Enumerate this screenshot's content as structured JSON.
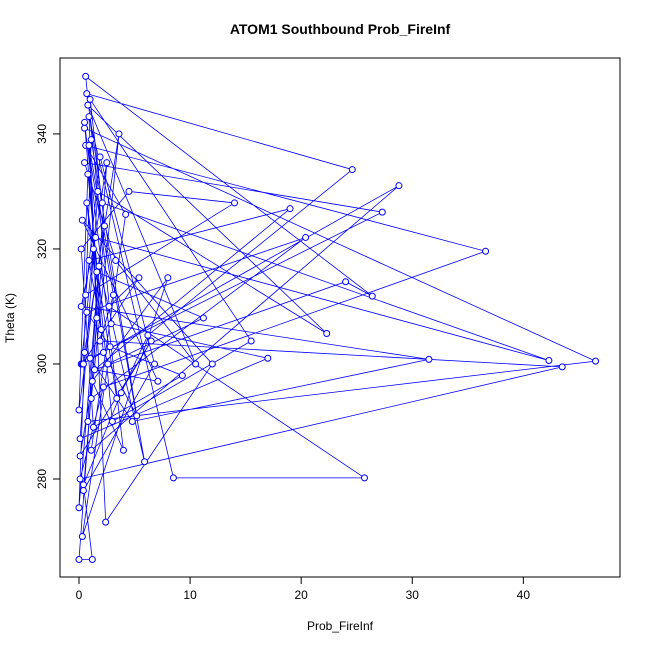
{
  "chart_data": {
    "type": "line",
    "title": "ATOM1 Southbound Prob_FireInf",
    "x_label": "Prob_FireInf",
    "y_label": "Theta (K)",
    "color": "#0000ff",
    "xlim": [
      -1.71,
      48.7
    ],
    "ylim": [
      262.96,
      353.2
    ],
    "xticks": [
      0,
      10,
      20,
      30,
      40
    ],
    "yticks": [
      280,
      300,
      320,
      340
    ],
    "x": [
      0.2,
      1.3,
      2.5,
      0.8,
      46.5,
      0.5,
      3.1,
      1.9,
      43.5,
      0.1,
      2.2,
      36.6,
      0.6,
      4.2,
      1.1,
      28.8,
      0.3,
      5.4,
      2.7,
      25.7,
      8.5,
      0.9,
      1.6,
      0,
      1.2,
      0.4,
      3.8,
      6.2,
      24.6,
      0.7,
      2.1,
      42.3,
      1.5,
      0.2,
      31.5,
      4.8,
      1,
      27.3,
      0.5,
      3.3,
      10.5,
      0.8,
      22.3,
      1.7,
      0.1,
      17,
      2.9,
      0.6,
      26.4,
      24,
      1.4,
      7.1,
      0.3,
      12,
      2.4,
      0.9,
      5.9,
      1.8,
      0,
      0.5,
      3.6,
      1.1,
      20.4,
      0.7,
      2.8,
      9.3,
      1.3,
      0.2,
      4.5,
      14,
      0.6,
      1.9,
      6.8,
      0.4,
      2.3,
      1,
      15.5,
      3,
      0.8,
      0,
      1.6,
      11.2,
      2.6,
      0.3,
      8,
      1.2,
      4,
      0.5,
      2,
      0.9,
      19,
      1.4,
      0.1,
      6.5,
      3.4,
      0.7,
      2.2,
      5.2,
      1.1,
      0.4
    ],
    "values": [
      300,
      320,
      335,
      290,
      300.5,
      341,
      312,
      304,
      299.5,
      280,
      296,
      319.6,
      338,
      326,
      285,
      331,
      300,
      315,
      310,
      280.2,
      280.2,
      343,
      308,
      266,
      266,
      279,
      295,
      305,
      333.8,
      347,
      328,
      300.6,
      322,
      310,
      300.8,
      290,
      301,
      326.4,
      335,
      318,
      300,
      345,
      305.3,
      330,
      287,
      301,
      307,
      350,
      311.8,
      314.3,
      299,
      297,
      325,
      300,
      272.5,
      338,
      283,
      317,
      275,
      302,
      340,
      294,
      322,
      309,
      303,
      298,
      289,
      320,
      330,
      328,
      312,
      336,
      300,
      278,
      324,
      346,
      304,
      290,
      333,
      292,
      316,
      308,
      300,
      270,
      315,
      297,
      285,
      342,
      306,
      318,
      327,
      299,
      284,
      304,
      294,
      328,
      302,
      291,
      339,
      300
    ]
  }
}
